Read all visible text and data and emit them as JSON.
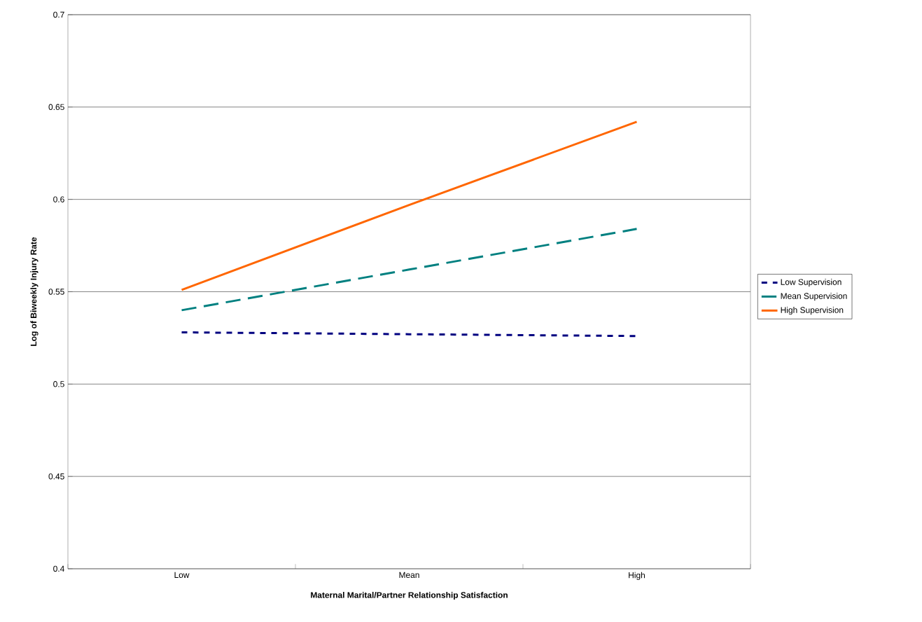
{
  "chart_data": {
    "type": "line",
    "xlabel": "Maternal Marital/Partner Relationship Satisfaction",
    "ylabel": "Log of Biweekly Injury Rate",
    "categories": [
      "Low",
      "Mean",
      "High"
    ],
    "series": [
      {
        "name": "Low Supervision",
        "color": "#000080",
        "line_style": "dotted",
        "values": [
          0.528,
          0.527,
          0.526
        ]
      },
      {
        "name": "Mean Supervision",
        "color": "#008080",
        "line_style": "dashed",
        "values": [
          0.54,
          0.562,
          0.584
        ]
      },
      {
        "name": "High Supervision",
        "color": "#ff6600",
        "line_style": "solid",
        "values": [
          0.551,
          0.597,
          0.642
        ]
      }
    ],
    "ylim": [
      0.4,
      0.7
    ],
    "yticks": [
      0.4,
      0.45,
      0.5,
      0.55,
      0.6,
      0.65,
      0.7
    ],
    "grid": "y",
    "legend": "right"
  }
}
